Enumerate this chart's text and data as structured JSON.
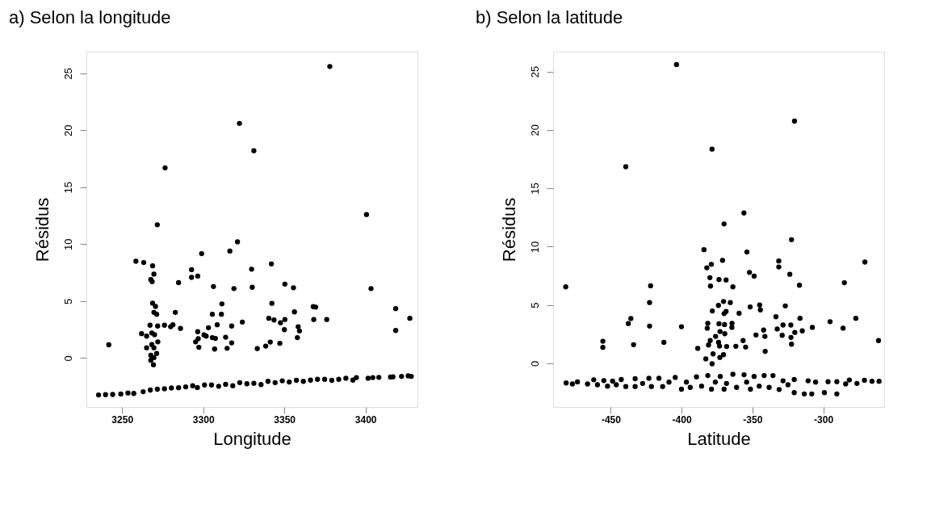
{
  "chart_data": [
    {
      "type": "scatter",
      "title": "a)   Selon la longitude",
      "xlabel": "Longitude",
      "ylabel": "Résidus",
      "marker": "circle",
      "grid": false,
      "xlim": [
        3228,
        3432
      ],
      "ylim": [
        -4.3,
        26.9
      ],
      "xticks": [
        3250,
        3300,
        3350,
        3400
      ],
      "yticks": [
        0,
        5,
        10,
        15,
        20,
        25
      ],
      "series": [
        {
          "color": "#000000",
          "x": [
            3378,
            3322.3,
            3331.2,
            3276.5,
            3271.7,
            3400.6,
            3321.1,
            3316.4,
            3299,
            3258.5,
            3263.3,
            3268.8,
            3342,
            3329.8,
            3269.6,
            3292.8,
            3292.8,
            3296.6,
            3267.7,
            3268.5,
            3284.8,
            3306.3,
            3318.9,
            3330.2,
            3350.3,
            3355.6,
            3403.4,
            3268.8,
            3270.6,
            3311.5,
            3342.3,
            3367.8,
            3369.3,
            3418.6,
            3269.6,
            3271.3,
            3282.8,
            3305.6,
            3311.2,
            3356.2,
            3340.4,
            3343.6,
            3350.3,
            3347.6,
            3368.1,
            3376.1,
            3427.3,
            3324.1,
            3267.2,
            3271.9,
            3276.1,
            3279.9,
            3281.3,
            3286,
            3308.6,
            3317.5,
            3303.2,
            3358.5,
            3359.3,
            3350,
            3418.6,
            3262,
            3265.1,
            3268.3,
            3270,
            3296.6,
            3300.5,
            3301.8,
            3305.6,
            3307.5,
            3313.8,
            3296.9,
            3295.3,
            3272,
            3268.3,
            3241.8,
            3317.5,
            3341.3,
            3358,
            3347.2,
            3338.5,
            3333.3,
            3314.7,
            3307,
            3297.3,
            3265.1,
            3269.6,
            3271.3,
            3267.7,
            3269.6,
            3267.7,
            3269.3,
            3235.5,
            3239.8,
            3244.2,
            3249.2,
            3253.6,
            3257.2,
            3263,
            3267.4,
            3271.7,
            3276.1,
            3280.4,
            3284.8,
            3289.2,
            3293.5,
            3296.4,
            3300.8,
            3305.1,
            3309.5,
            3313.8,
            3318.2,
            3322.5,
            3326.9,
            3331.2,
            3335.6,
            3339.9,
            3344.3,
            3348.7,
            3353,
            3357.4,
            3361.7,
            3366.1,
            3370.4,
            3374.8,
            3379.2,
            3383.5,
            3387.9,
            3392.2,
            3394.4,
            3401.6,
            3404.5,
            3408.2,
            3415.4,
            3416.9,
            3422.2,
            3426.3,
            3428.2
          ],
          "values": [
            25.6,
            20.6,
            18.2,
            16.7,
            11.7,
            12.6,
            10.2,
            9.39,
            9.17,
            8.5,
            8.39,
            8.1,
            8.26,
            7.8,
            7.37,
            7.76,
            7.08,
            7.19,
            6.89,
            6.71,
            6.62,
            6.28,
            6.1,
            6.21,
            6.49,
            6.17,
            6.1,
            4.82,
            4.53,
            4.75,
            4.8,
            4.51,
            4.47,
            4.34,
            4.01,
            3.84,
            4.01,
            3.84,
            3.84,
            4.05,
            3.49,
            3.34,
            3.38,
            3.1,
            3.38,
            3.38,
            3.49,
            3.16,
            2.88,
            2.81,
            2.88,
            2.75,
            2.92,
            2.6,
            2.92,
            2.81,
            2.66,
            2.75,
            2.38,
            2.49,
            2.42,
            2.14,
            1.92,
            2.2,
            2.05,
            2.31,
            2.03,
            1.92,
            1.79,
            1.72,
            1.83,
            1.7,
            1.42,
            1.42,
            1.18,
            1.16,
            1.33,
            1.4,
            1.79,
            1.29,
            1.05,
            0.83,
            0.85,
            0.79,
            0.94,
            0.9,
            0.9,
            0.4,
            0.24,
            0.03,
            -0.2,
            -0.59,
            -3.24,
            -3.22,
            -3.2,
            -3.16,
            -3.07,
            -3.11,
            -2.96,
            -2.81,
            -2.74,
            -2.7,
            -2.63,
            -2.61,
            -2.53,
            -2.44,
            -2.59,
            -2.37,
            -2.37,
            -2.48,
            -2.31,
            -2.44,
            -2.16,
            -2.26,
            -2.22,
            -2.33,
            -2.05,
            -2.16,
            -2,
            -2.11,
            -1.96,
            -2.05,
            -1.94,
            -1.87,
            -1.87,
            -1.96,
            -1.87,
            -1.78,
            -1.94,
            -1.72,
            -1.78,
            -1.72,
            -1.7,
            -1.67,
            -1.65,
            -1.61,
            -1.57,
            -1.61
          ]
        }
      ]
    },
    {
      "type": "scatter",
      "title": "b)   Selon la latitude",
      "xlabel": "Latitude",
      "ylabel": "Résidus",
      "marker": "circle",
      "grid": false,
      "xlim": [
        -490.7,
        -257
      ],
      "ylim": [
        -3.74,
        26.7
      ],
      "xticks": [
        -450,
        -400,
        -350,
        -300
      ],
      "yticks": [
        0,
        5,
        10,
        15,
        20,
        25
      ],
      "series": [
        {
          "color": "#000000",
          "x": [
            -403.6,
            -320.3,
            -378.5,
            -439.4,
            -356,
            -370,
            -322.4,
            -384.2,
            -353.9,
            -371.1,
            -331.4,
            -331.4,
            -270.6,
            -379,
            -382.2,
            -352.1,
            -348.8,
            -323.6,
            -380,
            -373.6,
            -368.6,
            -481.8,
            -421.9,
            -379.6,
            -363.8,
            -316.8,
            -285.1,
            -422.6,
            -370.4,
            -365.6,
            -374,
            -344.9,
            -344.4,
            -351.6,
            -326.8,
            -378.3,
            -368.6,
            -370,
            -359.4,
            -435.8,
            -437.6,
            -333.4,
            -316.4,
            -277,
            -381.5,
            -373.6,
            -369.7,
            -364.4,
            -328.4,
            -322.9,
            -422.6,
            -400.1,
            -295.2,
            -381.9,
            -364.5,
            -332.5,
            -307.7,
            -286,
            -314.8,
            -342.1,
            -320.1,
            -372.9,
            -369.5,
            -347.5,
            -341.2,
            -329,
            -322.8,
            -376,
            -379.8,
            -373.9,
            -356.6,
            -455.6,
            -455.6,
            -433.9,
            -412.5,
            -261,
            -322.4,
            -381,
            -373.2,
            -368.2,
            -361.7,
            -354.8,
            -388.6,
            -341,
            -377.8,
            -370.4,
            -373,
            -382.9,
            -378.5,
            -481.5,
            -477.1,
            -473.5,
            -466.4,
            -462,
            -459.4,
            -454.9,
            -452.3,
            -448.7,
            -446.1,
            -442.6,
            -439.4,
            -432.8,
            -432.8,
            -427.5,
            -423.1,
            -421.3,
            -416,
            -413.4,
            -408.9,
            -404.5,
            -400.1,
            -396.6,
            -393.9,
            -389.5,
            -385.9,
            -381.5,
            -378.9,
            -376.2,
            -372.7,
            -370,
            -368.3,
            -363.8,
            -361.2,
            -355.9,
            -354.1,
            -351.4,
            -348.8,
            -345.2,
            -341.7,
            -338.2,
            -335.5,
            -331.1,
            -328.4,
            -324.9,
            -320.5,
            -320.5,
            -313.4,
            -310.7,
            -308.1,
            -305.4,
            -299.2,
            -296.6,
            -290.4,
            -290.4,
            -284.2,
            -281.6,
            -276.2,
            -270.9,
            -265.6,
            -260.6
          ],
          "values": [
            25.6,
            20.75,
            18.35,
            16.85,
            12.88,
            11.94,
            10.59,
            9.74,
            9.54,
            8.82,
            8.77,
            8.26,
            8.68,
            8.48,
            8.19,
            7.79,
            7.47,
            7.63,
            7.34,
            7.18,
            7.14,
            6.55,
            6.64,
            6.62,
            6.55,
            6.69,
            6.91,
            5.21,
            5.3,
            5.21,
            4.96,
            5,
            4.58,
            4.83,
            4.92,
            4.49,
            4.44,
            4.26,
            4.29,
            3.84,
            3.41,
            3.99,
            3.86,
            3.86,
            3.43,
            3.39,
            3.32,
            3.43,
            3.28,
            3.28,
            3.19,
            3.14,
            3.57,
            3.01,
            3.08,
            2.94,
            3.08,
            3.01,
            2.78,
            2.85,
            2.65,
            2.72,
            2.54,
            2.43,
            2.31,
            2.4,
            2.22,
            2.31,
            1.95,
            1.8,
            1.95,
            1.89,
            1.37,
            1.6,
            1.8,
            1.95,
            1.64,
            1.57,
            1.48,
            1.44,
            1.46,
            1.39,
            1.28,
            1.03,
            0.81,
            0.74,
            0.5,
            0.38,
            -0.04,
            -1.68,
            -1.77,
            -1.59,
            -1.77,
            -1.41,
            -1.84,
            -1.48,
            -1.95,
            -1.52,
            -1.84,
            -1.39,
            -1.99,
            -1.32,
            -1.99,
            -1.72,
            -1.28,
            -1.99,
            -1.28,
            -1.99,
            -1.61,
            -1.21,
            -2.22,
            -1.61,
            -2.06,
            -1.16,
            -1.95,
            -1.05,
            -2.22,
            -1.61,
            -1.12,
            -2.22,
            -1.72,
            -0.94,
            -2.06,
            -0.98,
            -1.61,
            -2.22,
            -1.12,
            -1.95,
            -1.05,
            -2.06,
            -1.05,
            -2.24,
            -1.5,
            -1.84,
            -1.39,
            -2.51,
            -2.62,
            -1.5,
            -2.62,
            -1.61,
            -2.51,
            -1.57,
            -2.62,
            -1.57,
            -1.77,
            -1.43,
            -1.72,
            -1.45,
            -1.54,
            -1.54
          ]
        }
      ]
    }
  ]
}
